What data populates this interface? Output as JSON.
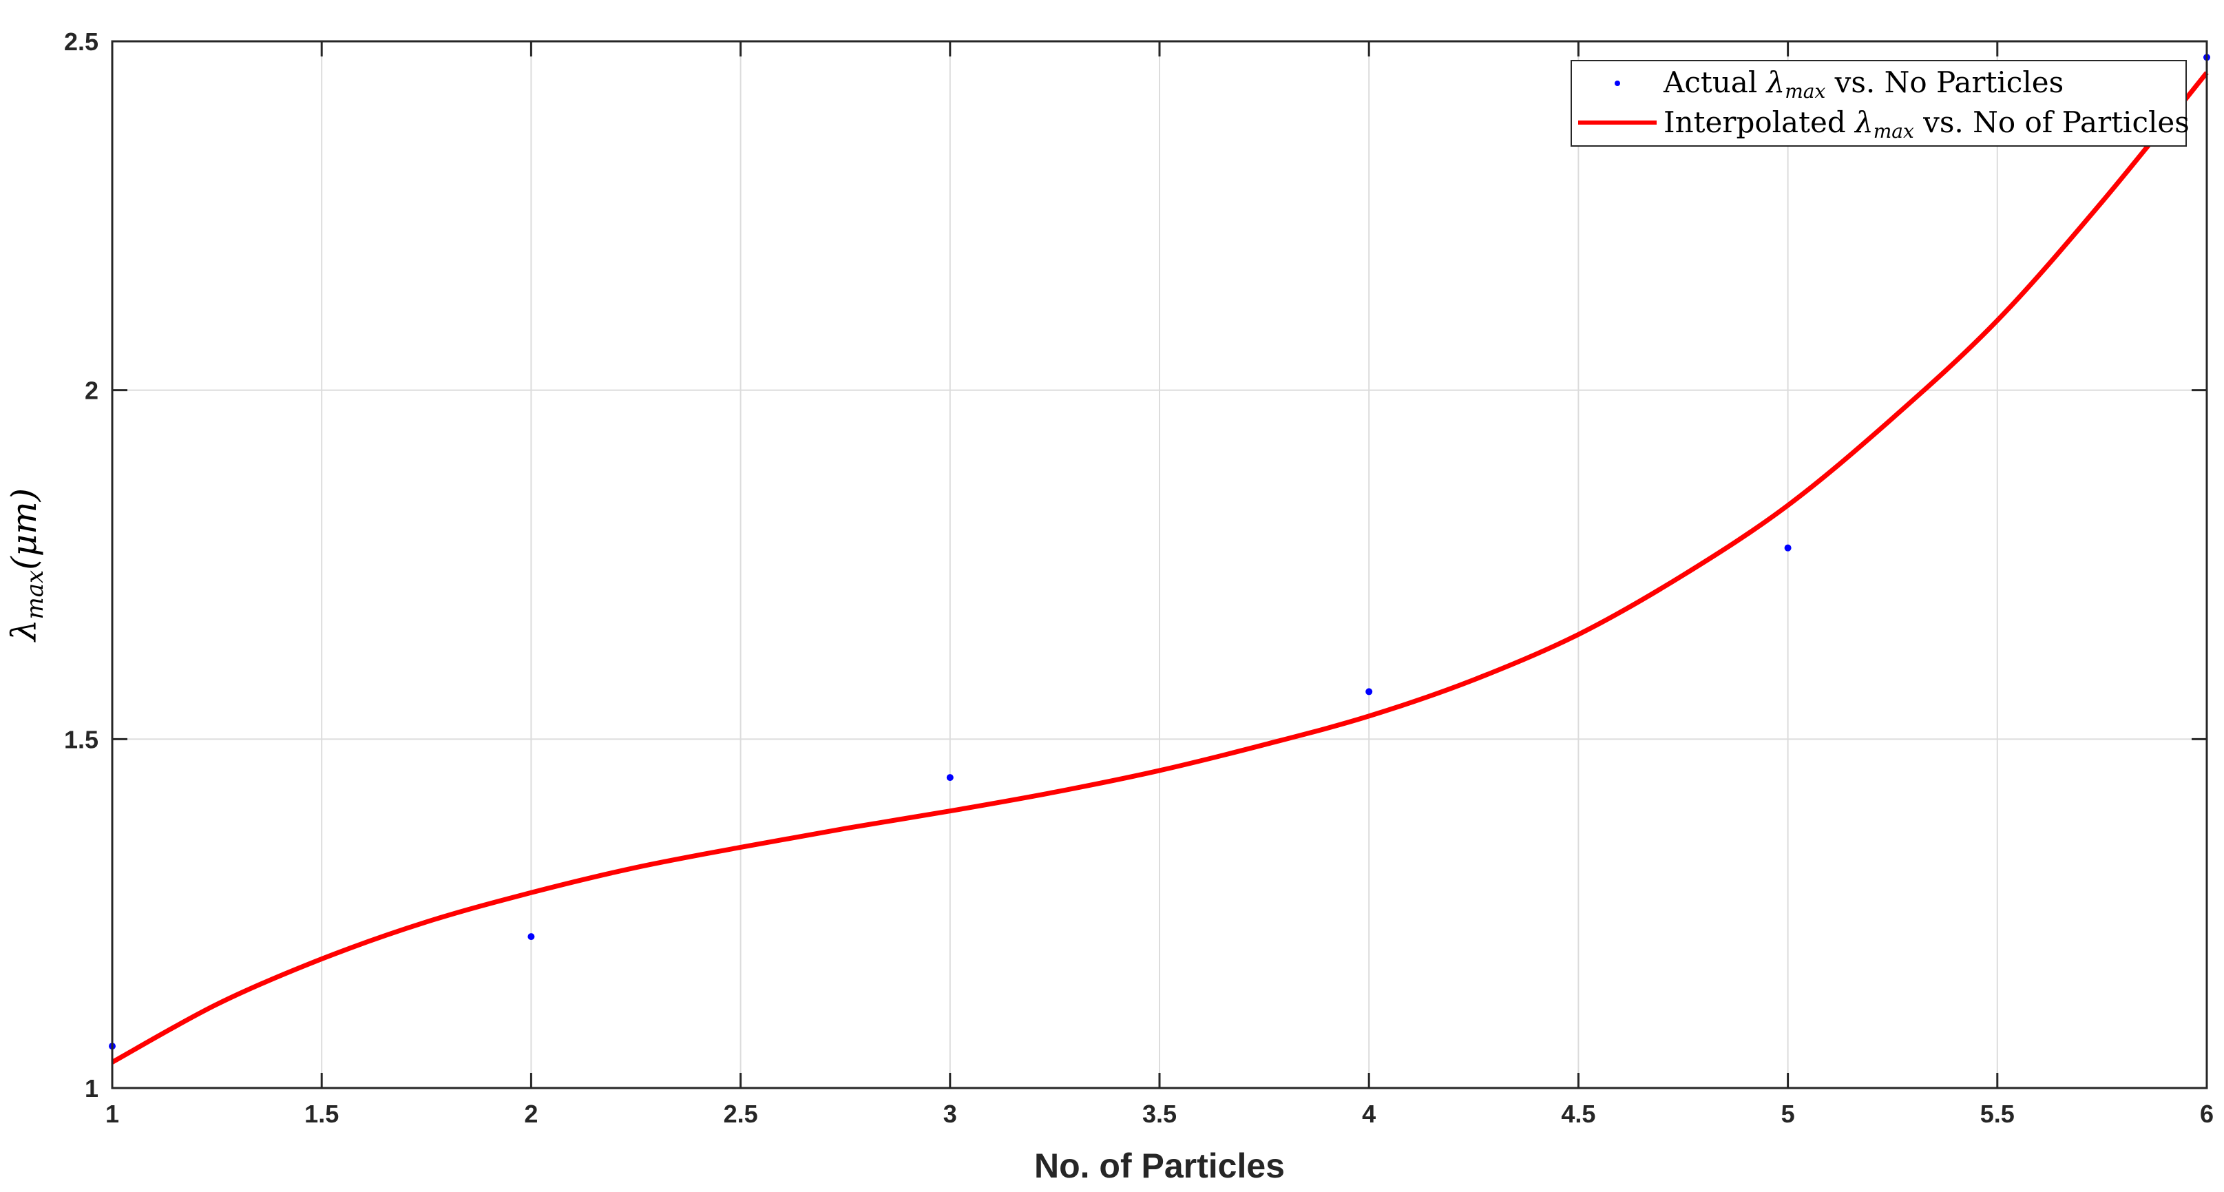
{
  "chart_data": {
    "type": "line",
    "xlabel": "No. of Particles",
    "ylabel": {
      "symbol": "λ",
      "subscript": "max",
      "unit": "(μm)"
    },
    "xlim": [
      1,
      6
    ],
    "ylim": [
      1,
      2.5
    ],
    "xticks": [
      1,
      1.5,
      2,
      2.5,
      3,
      3.5,
      4,
      4.5,
      5,
      5.5,
      6
    ],
    "xtick_labels": [
      "1",
      "1.5",
      "2",
      "2.5",
      "3",
      "3.5",
      "4",
      "4.5",
      "5",
      "5.5",
      "6"
    ],
    "yticks": [
      1,
      1.5,
      2,
      2.5
    ],
    "ytick_labels": [
      "1",
      "1.5",
      "2",
      "2.5"
    ],
    "grid": true,
    "legend_position": "top-right",
    "series": [
      {
        "name": "Actual λmax vs. No Particles",
        "legend": {
          "prefix": "Actual ",
          "symbol": "λ",
          "subscript": "max",
          "suffix": " vs. No Particles"
        },
        "style": "markers",
        "color": "#0000ff",
        "x": [
          1,
          2,
          3,
          4,
          5,
          6
        ],
        "y": [
          1.06,
          1.217,
          1.445,
          1.568,
          1.774,
          2.477
        ]
      },
      {
        "name": "Interpolated λmax vs. No of Particles",
        "legend": {
          "prefix": "Interpolated ",
          "symbol": "λ",
          "subscript": "max",
          "suffix": " vs. No of Particles"
        },
        "style": "line",
        "color": "#ff0000",
        "x": [
          1,
          1.25,
          1.5,
          1.75,
          2,
          2.25,
          2.5,
          2.75,
          3,
          3.25,
          3.5,
          3.75,
          4,
          4.25,
          4.5,
          4.75,
          5,
          5.25,
          5.5,
          5.75,
          6
        ],
        "y": [
          1.037,
          1.12,
          1.185,
          1.238,
          1.28,
          1.316,
          1.345,
          1.372,
          1.397,
          1.424,
          1.455,
          1.492,
          1.533,
          1.585,
          1.65,
          1.735,
          1.835,
          1.96,
          2.1,
          2.27,
          2.455
        ]
      }
    ]
  }
}
